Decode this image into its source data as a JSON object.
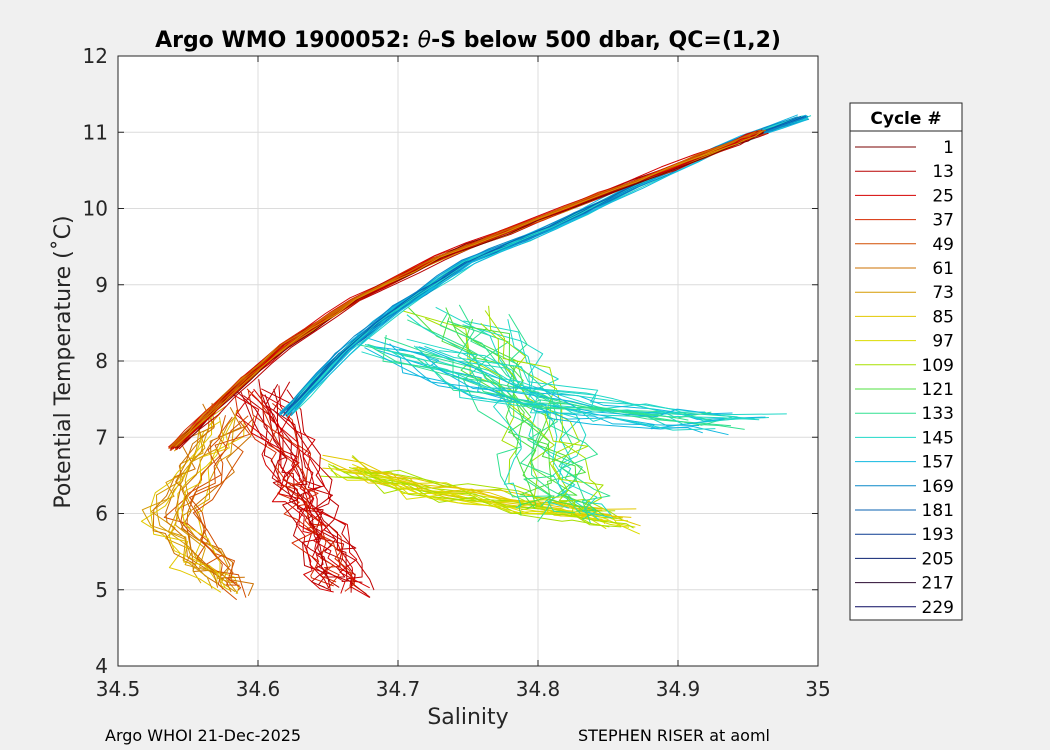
{
  "chart_data": {
    "type": "line",
    "title": "Argo WMO 1900052: θ-S below 500 dbar,  QC=(1,2)",
    "title_parts": {
      "prefix": "Argo WMO 1900052: ",
      "symbol": "θ",
      "suffix": "-S below 500 dbar,  QC=(1,2)"
    },
    "xlabel": "Salinity",
    "ylabel": "Potential Temperature (˚C)",
    "xlim": [
      34.5,
      35
    ],
    "ylim": [
      4,
      12
    ],
    "xticks": [
      "34.5",
      "34.6",
      "34.7",
      "34.8",
      "34.9",
      "35"
    ],
    "yticks": [
      "4",
      "5",
      "6",
      "7",
      "8",
      "9",
      "10",
      "11",
      "12"
    ],
    "grid": true,
    "legend": {
      "title": "Cycle #",
      "placement": "right",
      "entries": [
        {
          "label": "1",
          "color": "#7a0000"
        },
        {
          "label": "13",
          "color": "#b80000"
        },
        {
          "label": "25",
          "color": "#d40000"
        },
        {
          "label": "37",
          "color": "#d62a00"
        },
        {
          "label": "49",
          "color": "#d24e00"
        },
        {
          "label": "61",
          "color": "#cc7000"
        },
        {
          "label": "73",
          "color": "#d59a00"
        },
        {
          "label": "85",
          "color": "#e3c800"
        },
        {
          "label": "97",
          "color": "#dcdc00"
        },
        {
          "label": "109",
          "color": "#a8e000"
        },
        {
          "label": "121",
          "color": "#50e040"
        },
        {
          "label": "133",
          "color": "#30e090"
        },
        {
          "label": "145",
          "color": "#20d8c8"
        },
        {
          "label": "157",
          "color": "#10b8e0"
        },
        {
          "label": "169",
          "color": "#0a88c8"
        },
        {
          "label": "181",
          "color": "#0860b0"
        },
        {
          "label": "193",
          "color": "#0a3a90"
        },
        {
          "label": "205",
          "color": "#0a2070"
        },
        {
          "label": "217",
          "color": "#2a0a30"
        },
        {
          "label": "229",
          "color": "#0a0a60"
        }
      ]
    },
    "series_groups": [
      {
        "name": "upper-envelope-early",
        "colors": [
          "#7a0000",
          "#b80000",
          "#d40000",
          "#d62a00",
          "#d24e00",
          "#cc7000",
          "#d59a00"
        ],
        "points": [
          [
            34.54,
            6.85
          ],
          [
            34.58,
            7.55
          ],
          [
            34.62,
            8.2
          ],
          [
            34.67,
            8.8
          ],
          [
            34.73,
            9.35
          ],
          [
            34.8,
            9.85
          ],
          [
            34.87,
            10.35
          ],
          [
            34.94,
            10.85
          ],
          [
            34.96,
            11.0
          ]
        ]
      },
      {
        "name": "upper-envelope-mid",
        "colors": [
          "#0a88c8",
          "#10b8e0",
          "#20d8c8",
          "#0860b0"
        ],
        "points": [
          [
            34.62,
            7.3
          ],
          [
            34.66,
            8.1
          ],
          [
            34.7,
            8.7
          ],
          [
            34.75,
            9.3
          ],
          [
            34.81,
            9.75
          ],
          [
            34.87,
            10.3
          ],
          [
            34.93,
            10.8
          ],
          [
            34.99,
            11.2
          ]
        ]
      },
      {
        "name": "red-plume",
        "colors": [
          "#d40000",
          "#b80000",
          "#d62a00",
          "#c00000"
        ],
        "points": [
          [
            34.6,
            7.6
          ],
          [
            34.62,
            6.8
          ],
          [
            34.63,
            6.3
          ],
          [
            34.64,
            5.9
          ],
          [
            34.65,
            5.4
          ],
          [
            34.66,
            5.0
          ]
        ]
      },
      {
        "name": "orange-fan",
        "colors": [
          "#cc7000",
          "#d59a00",
          "#e3c800",
          "#d24e00"
        ],
        "points": [
          [
            34.58,
            7.3
          ],
          [
            34.56,
            6.6
          ],
          [
            34.54,
            6.0
          ],
          [
            34.56,
            5.4
          ],
          [
            34.58,
            5.0
          ]
        ]
      },
      {
        "name": "green-cloud",
        "colors": [
          "#50e040",
          "#30e090",
          "#a8e000",
          "#20d8c8"
        ],
        "points": [
          [
            34.74,
            8.6
          ],
          [
            34.78,
            7.8
          ],
          [
            34.8,
            7.0
          ],
          [
            34.81,
            6.4
          ],
          [
            34.82,
            6.0
          ]
        ]
      },
      {
        "name": "cyan-spread",
        "colors": [
          "#20d8c8",
          "#10b8e0",
          "#30e090"
        ],
        "points": [
          [
            34.7,
            8.2
          ],
          [
            34.78,
            7.6
          ],
          [
            34.86,
            7.3
          ],
          [
            34.94,
            7.2
          ]
        ]
      },
      {
        "name": "yellow-band",
        "colors": [
          "#dcdc00",
          "#e3c800",
          "#a8e000"
        ],
        "points": [
          [
            34.66,
            6.6
          ],
          [
            34.72,
            6.3
          ],
          [
            34.8,
            6.1
          ],
          [
            34.86,
            5.9
          ]
        ]
      }
    ]
  },
  "footer": {
    "left": "Argo WHOI 21-Dec-2025",
    "right": "STEPHEN RISER at aoml"
  }
}
